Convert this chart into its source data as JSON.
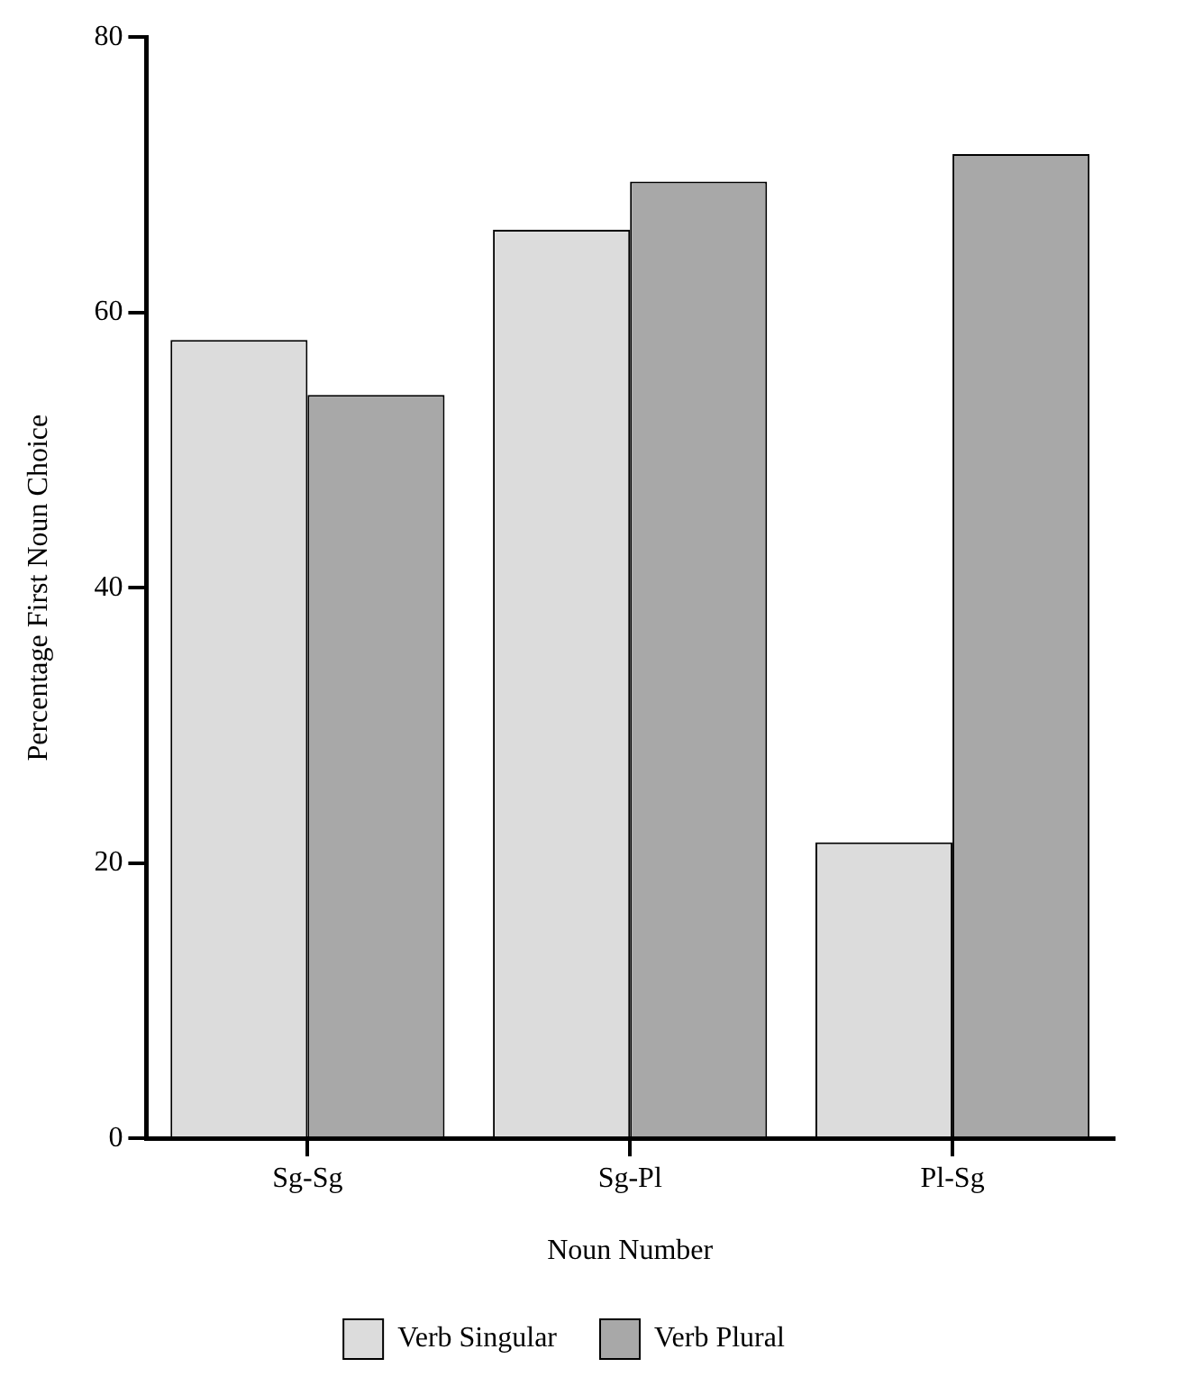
{
  "chart_data": {
    "type": "bar",
    "xlabel": "Noun Number",
    "ylabel": "Percentage First Noun Choice",
    "categories": [
      "Sg-Sg",
      "Sg-Pl",
      "Pl-Sg"
    ],
    "series": [
      {
        "name": "Verb Singular",
        "color": "#dcdcdc",
        "values": [
          58,
          66,
          21.5
        ]
      },
      {
        "name": "Verb Plural",
        "color": "#a8a8a8",
        "values": [
          54,
          69.5,
          71.5
        ]
      }
    ],
    "ylim": [
      0,
      80
    ],
    "yticks": [
      0,
      20,
      40,
      60,
      80
    ],
    "grid": false,
    "legend": "bottom"
  }
}
